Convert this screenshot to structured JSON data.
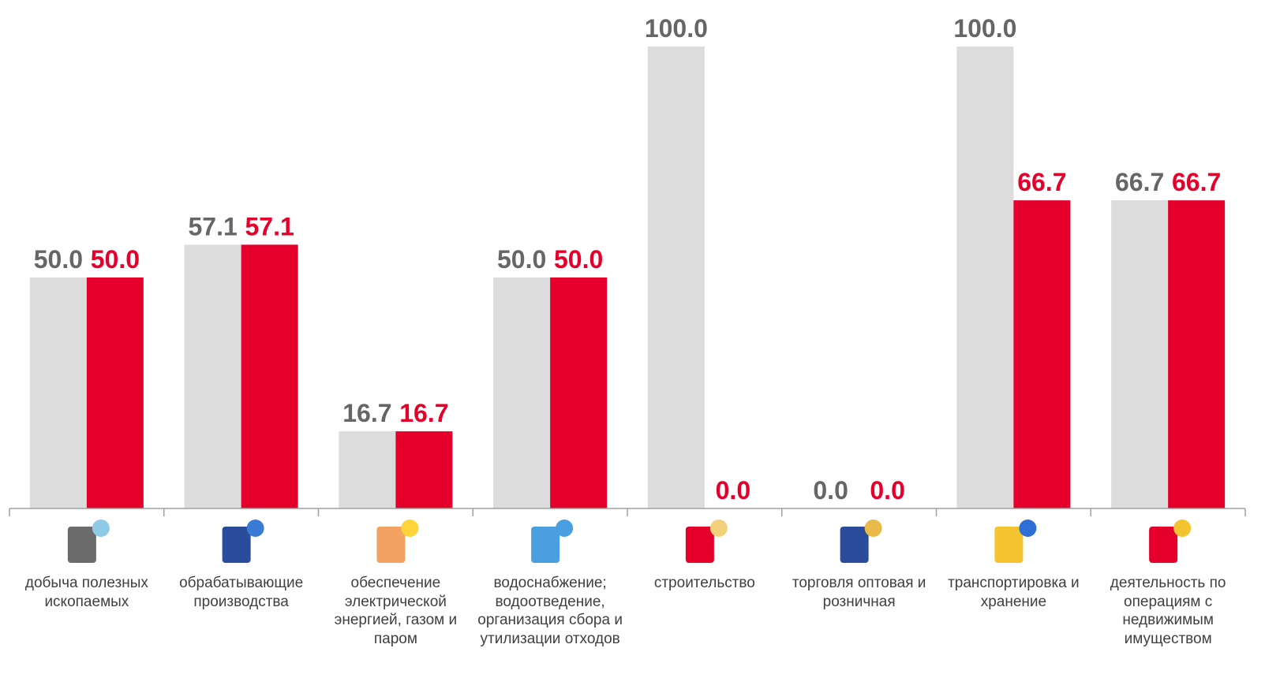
{
  "chart_data": {
    "type": "bar",
    "categories": [
      "добыча полезных ископаемых",
      "обрабатывающие производства",
      "обеспечение электрической энергией, газом и паром",
      "водоснабжение; водоотведение, организация сбора и утилизации отходов",
      "строительство",
      "торговля оптовая и розничная",
      "транспортировка и хранение",
      "деятельность по операциям с недвижимым имуществом"
    ],
    "series": [
      {
        "color": "#dcdcdc",
        "values": [
          50,
          57.1,
          16.7,
          50,
          100,
          0,
          100,
          66.7
        ],
        "value_labels": [
          "50.0",
          "57.1",
          "16.7",
          "50.0",
          "100.0",
          "0.0",
          "100.0",
          "66.7"
        ]
      },
      {
        "color": "#e4002b",
        "values": [
          50,
          57.1,
          16.7,
          50,
          0,
          0,
          66.7,
          66.7
        ],
        "value_labels": [
          "50.0",
          "57.1",
          "16.7",
          "50.0",
          "0.0",
          "0.0",
          "66.7",
          "66.7"
        ]
      }
    ],
    "ylim": [
      0,
      100
    ]
  }
}
